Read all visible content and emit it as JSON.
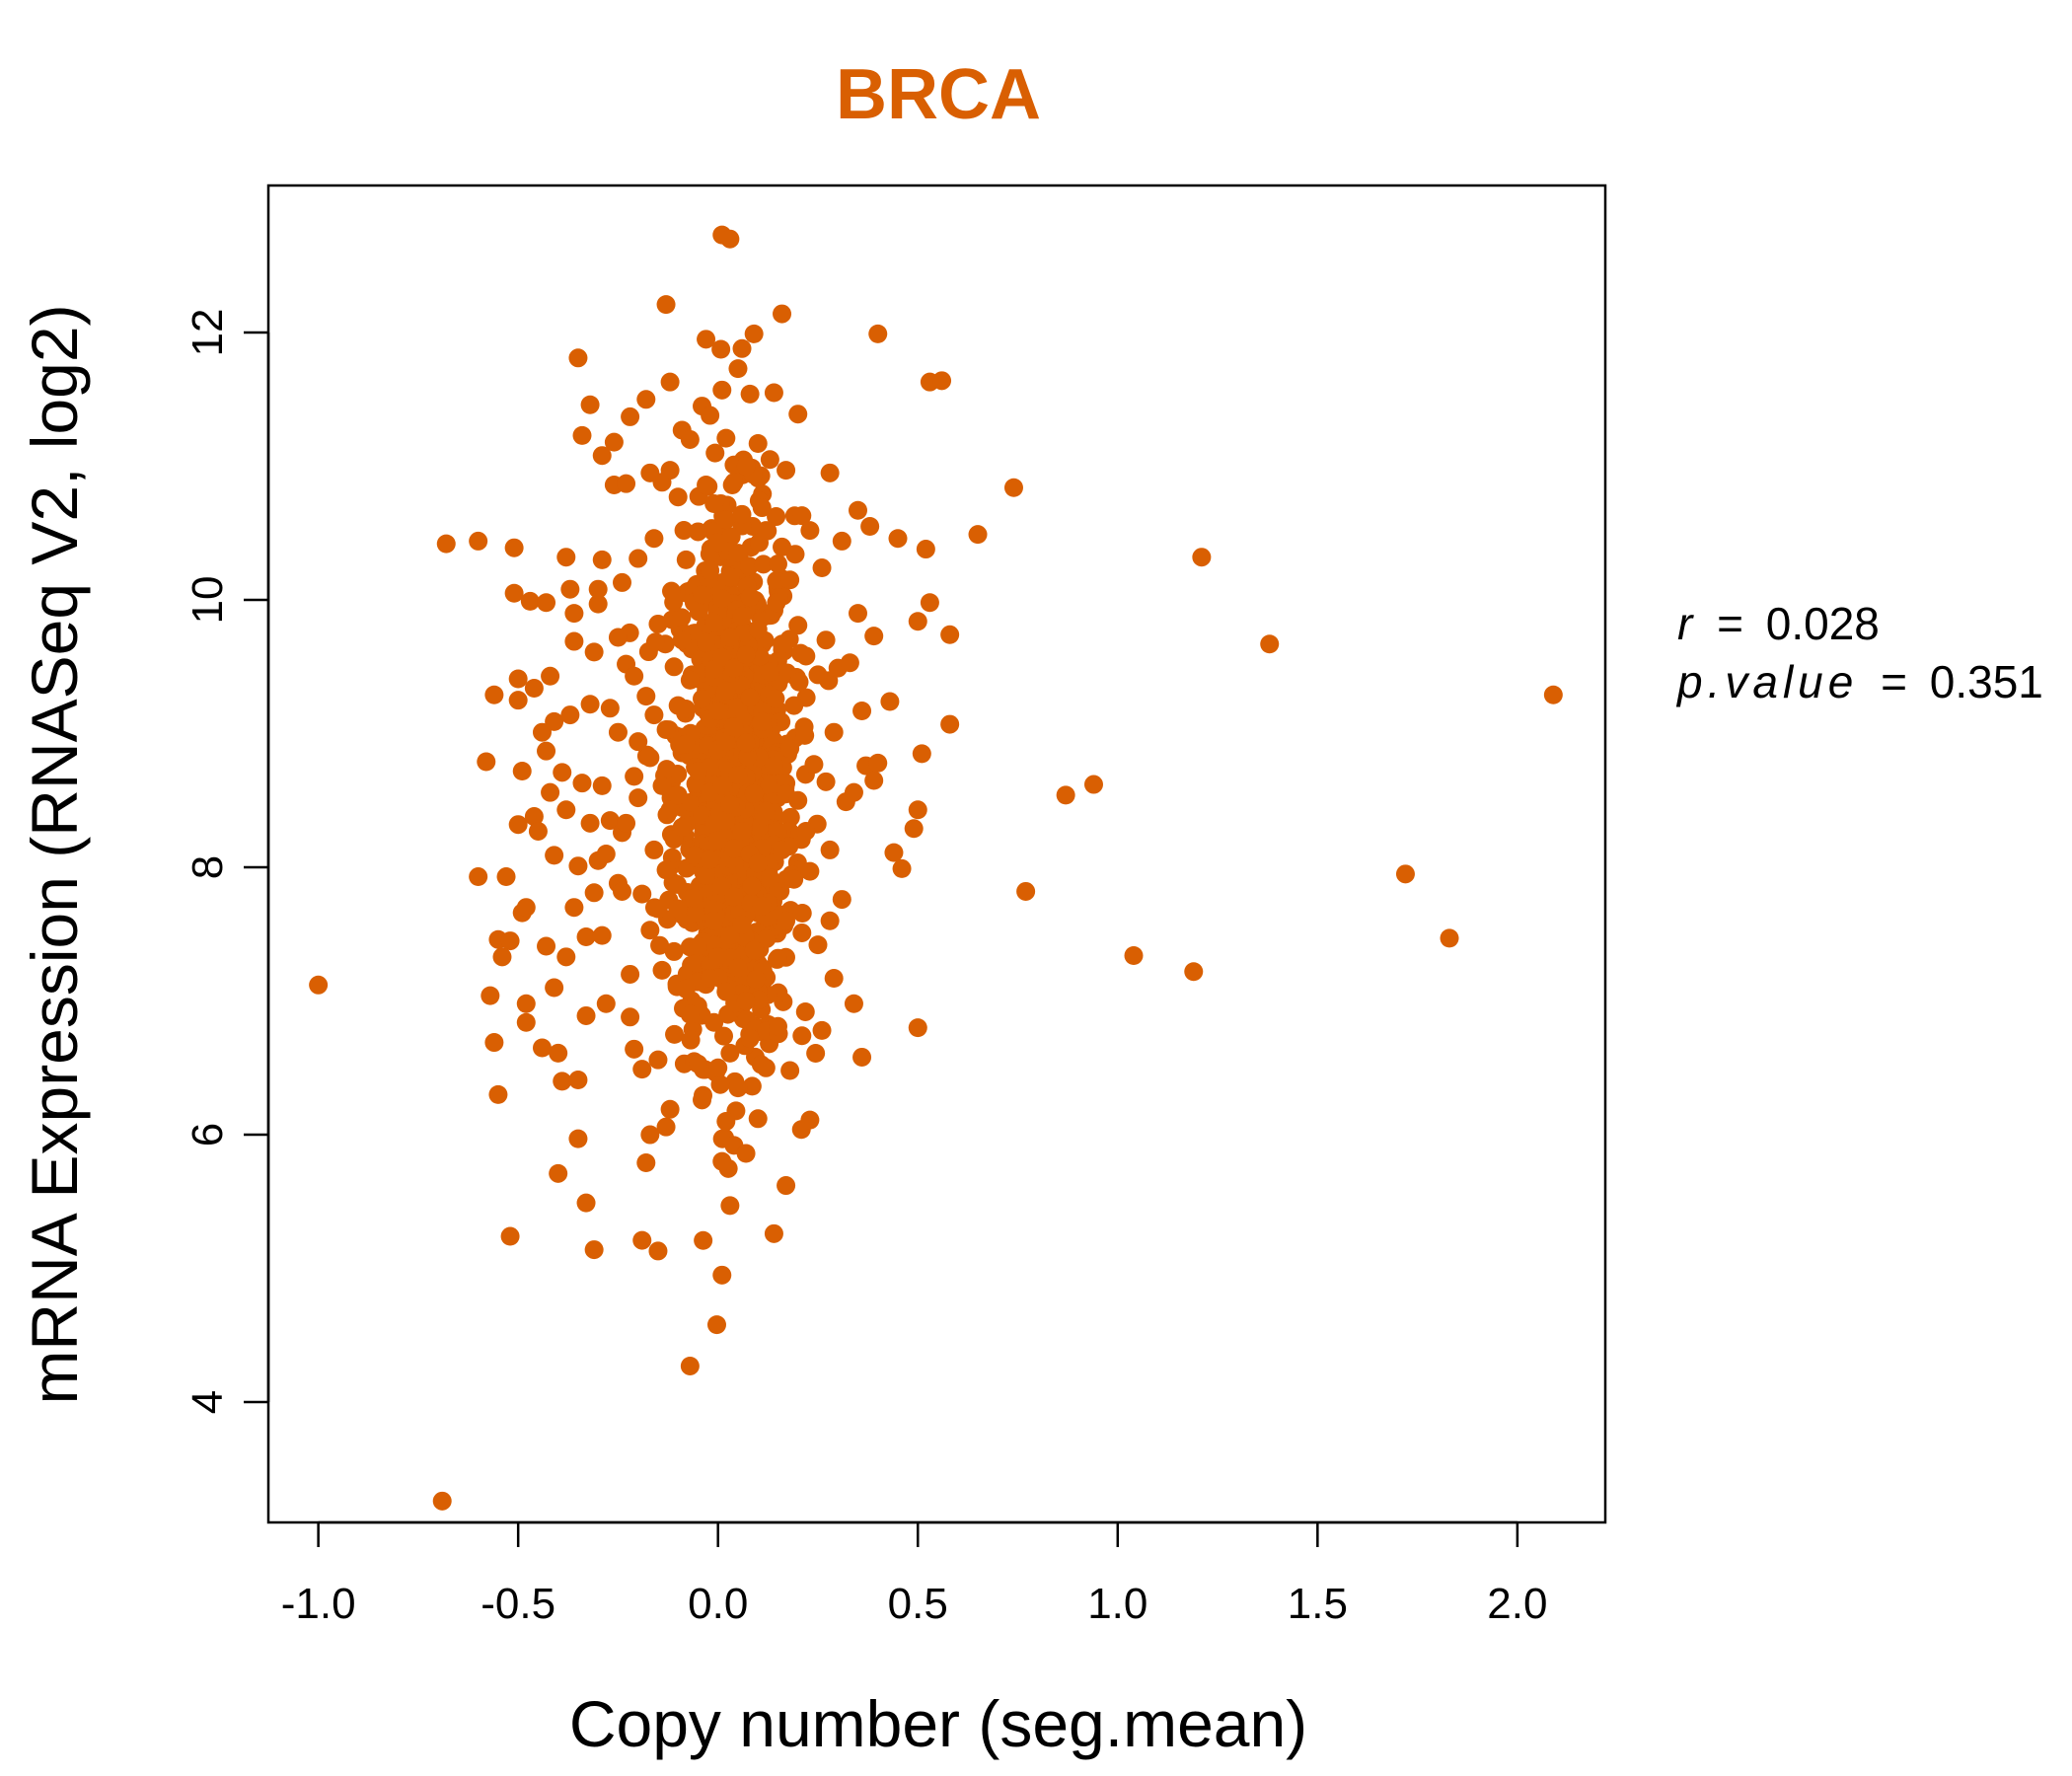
{
  "chart_data": {
    "type": "scatter",
    "title": "BRCA",
    "xlabel": "Copy number (seg.mean)",
    "ylabel": "mRNA Expression (RNASeq V2, log2)",
    "xlim": [
      -1.125,
      2.22
    ],
    "ylim": [
      3.1,
      13.1
    ],
    "xticks": [
      -1.0,
      -0.5,
      0.0,
      0.5,
      1.0,
      1.5,
      2.0
    ],
    "xtick_labels": [
      "-1.0",
      "-0.5",
      "0.0",
      "0.5",
      "1.0",
      "1.5",
      "2.0"
    ],
    "yticks": [
      4,
      6,
      8,
      10,
      12
    ],
    "ytick_labels": [
      "4",
      "6",
      "8",
      "10",
      "12"
    ],
    "grid": false,
    "color": "#D95F02",
    "annotation": {
      "r_label": "r",
      "r_value": "0.028",
      "p_label": "p.value",
      "p_value": "0.351",
      "equals": "="
    },
    "points": [
      [
        -1.0,
        7.12
      ],
      [
        -0.69,
        3.26
      ],
      [
        -0.68,
        10.42
      ],
      [
        -0.6,
        10.44
      ],
      [
        -0.6,
        7.93
      ],
      [
        -0.58,
        8.79
      ],
      [
        -0.57,
        7.04
      ],
      [
        -0.56,
        6.69
      ],
      [
        -0.56,
        9.29
      ],
      [
        -0.55,
        7.46
      ],
      [
        -0.55,
        6.3
      ],
      [
        -0.54,
        7.33
      ],
      [
        -0.53,
        7.93
      ],
      [
        -0.52,
        5.24
      ],
      [
        -0.52,
        7.45
      ],
      [
        -0.51,
        10.39
      ],
      [
        -0.51,
        10.05
      ],
      [
        -0.5,
        9.41
      ],
      [
        -0.5,
        8.32
      ],
      [
        -0.5,
        9.25
      ],
      [
        -0.49,
        7.66
      ],
      [
        -0.49,
        8.72
      ],
      [
        -0.48,
        7.7
      ],
      [
        -0.48,
        6.98
      ],
      [
        -0.48,
        6.84
      ],
      [
        -0.47,
        9.99
      ],
      [
        -0.46,
        8.38
      ],
      [
        -0.46,
        9.34
      ],
      [
        -0.45,
        8.27
      ],
      [
        -0.44,
        6.65
      ],
      [
        -0.44,
        9.01
      ],
      [
        -0.43,
        7.41
      ],
      [
        -0.43,
        8.87
      ],
      [
        -0.43,
        9.98
      ],
      [
        -0.42,
        9.43
      ],
      [
        -0.42,
        8.56
      ],
      [
        -0.41,
        8.09
      ],
      [
        -0.41,
        9.09
      ],
      [
        -0.41,
        7.1
      ],
      [
        -0.4,
        5.71
      ],
      [
        -0.4,
        6.61
      ],
      [
        -0.39,
        6.4
      ],
      [
        -0.39,
        8.71
      ],
      [
        -0.38,
        10.32
      ],
      [
        -0.38,
        7.33
      ],
      [
        -0.38,
        8.43
      ],
      [
        -0.37,
        9.14
      ],
      [
        -0.37,
        10.08
      ],
      [
        -0.36,
        9.9
      ],
      [
        -0.36,
        7.7
      ],
      [
        -0.36,
        9.69
      ],
      [
        -0.35,
        8.01
      ],
      [
        -0.35,
        5.97
      ],
      [
        -0.35,
        11.81
      ],
      [
        -0.35,
        6.41
      ],
      [
        -0.34,
        8.63
      ],
      [
        -0.34,
        11.23
      ],
      [
        -0.33,
        7.48
      ],
      [
        -0.33,
        5.49
      ],
      [
        -0.33,
        6.89
      ],
      [
        -0.32,
        11.46
      ],
      [
        -0.32,
        8.33
      ],
      [
        -0.32,
        9.22
      ],
      [
        -0.31,
        5.14
      ],
      [
        -0.31,
        7.81
      ],
      [
        -0.31,
        9.61
      ],
      [
        -0.3,
        8.05
      ],
      [
        -0.3,
        9.97
      ],
      [
        -0.3,
        10.08
      ],
      [
        -0.29,
        11.08
      ],
      [
        -0.29,
        8.61
      ],
      [
        -0.29,
        7.49
      ],
      [
        -0.29,
        10.3
      ],
      [
        -0.28,
        8.1
      ],
      [
        -0.28,
        6.98
      ],
      [
        -0.27,
        9.19
      ],
      [
        -0.27,
        8.35
      ],
      [
        -0.26,
        10.86
      ],
      [
        -0.26,
        11.18
      ],
      [
        -0.25,
        9.01
      ],
      [
        -0.25,
        9.72
      ],
      [
        -0.25,
        7.88
      ],
      [
        -0.24,
        8.26
      ],
      [
        -0.24,
        10.13
      ],
      [
        -0.24,
        7.82
      ],
      [
        -0.23,
        10.87
      ],
      [
        -0.23,
        9.52
      ],
      [
        -0.23,
        8.33
      ],
      [
        -0.22,
        7.2
      ],
      [
        -0.22,
        6.88
      ],
      [
        -0.22,
        11.37
      ],
      [
        -0.21,
        8.68
      ],
      [
        -0.21,
        6.64
      ],
      [
        -0.21,
        9.43
      ],
      [
        -0.2,
        8.52
      ],
      [
        -0.2,
        10.31
      ],
      [
        -0.2,
        8.94
      ],
      [
        -0.19,
        7.8
      ],
      [
        -0.19,
        6.49
      ],
      [
        -0.19,
        5.21
      ],
      [
        -0.18,
        11.5
      ],
      [
        -0.18,
        5.79
      ],
      [
        -0.18,
        9.28
      ],
      [
        -0.17,
        7.53
      ],
      [
        -0.17,
        10.95
      ],
      [
        -0.17,
        6.0
      ],
      [
        -0.17,
        8.82
      ],
      [
        -0.16,
        8.13
      ],
      [
        -0.16,
        9.14
      ],
      [
        -0.16,
        10.46
      ],
      [
        -0.15,
        7.69
      ],
      [
        -0.15,
        6.56
      ],
      [
        -0.15,
        5.13
      ],
      [
        -0.15,
        9.82
      ],
      [
        -0.14,
        8.61
      ],
      [
        -0.14,
        10.88
      ],
      [
        -0.14,
        7.23
      ],
      [
        -0.13,
        12.21
      ],
      [
        -0.13,
        9.03
      ],
      [
        -0.13,
        7.98
      ],
      [
        -0.12,
        6.19
      ],
      [
        -0.12,
        8.43
      ],
      [
        -0.12,
        11.63
      ],
      [
        -0.12,
        10.97
      ],
      [
        -0.11,
        9.5
      ],
      [
        -0.11,
        7.37
      ],
      [
        -0.11,
        8.21
      ],
      [
        -0.1,
        10.77
      ],
      [
        -0.1,
        9.21
      ],
      [
        -0.1,
        8.54
      ],
      [
        -0.1,
        7.69
      ],
      [
        -0.09,
        11.27
      ],
      [
        -0.09,
        9.7
      ],
      [
        -0.09,
        8.3
      ],
      [
        -0.08,
        8.92
      ],
      [
        -0.08,
        10.3
      ],
      [
        -0.08,
        7.09
      ],
      [
        -0.07,
        4.27
      ],
      [
        -0.07,
        11.2
      ],
      [
        -0.07,
        9.4
      ],
      [
        -0.07,
        6.9
      ],
      [
        -0.06,
        8.09
      ],
      [
        -0.06,
        9.98
      ],
      [
        -0.06,
        7.77
      ],
      [
        -0.05,
        10.51
      ],
      [
        -0.05,
        8.72
      ],
      [
        -0.05,
        7.41
      ],
      [
        -0.05,
        6.53
      ],
      [
        -0.04,
        9.26
      ],
      [
        -0.04,
        11.45
      ],
      [
        -0.04,
        10.04
      ],
      [
        -0.04,
        8.39
      ],
      [
        -0.04,
        6.26
      ],
      [
        -0.03,
        7.94
      ],
      [
        -0.03,
        9.68
      ],
      [
        -0.03,
        11.95
      ],
      [
        -0.03,
        10.86
      ],
      [
        -0.02,
        8.56
      ],
      [
        -0.02,
        7.17
      ],
      [
        -0.02,
        9.11
      ],
      [
        -0.02,
        10.22
      ],
      [
        -0.02,
        11.38
      ],
      [
        -0.02,
        8.06
      ],
      [
        -0.01,
        9.48
      ],
      [
        -0.01,
        7.6
      ],
      [
        -0.01,
        6.84
      ],
      [
        -0.01,
        10.72
      ],
      [
        -0.01,
        8.32
      ],
      [
        -0.01,
        9.83
      ],
      [
        0.0,
        8.88
      ],
      [
        0.0,
        7.33
      ],
      [
        0.0,
        10.43
      ],
      [
        0.0,
        6.5
      ],
      [
        0.0,
        9.17
      ],
      [
        0.0,
        8.2
      ],
      [
        0.01,
        12.73
      ],
      [
        0.01,
        4.95
      ],
      [
        0.01,
        11.57
      ],
      [
        0.01,
        9.57
      ],
      [
        0.01,
        7.86
      ],
      [
        0.01,
        10.01
      ],
      [
        0.01,
        8.61
      ],
      [
        0.01,
        5.8
      ],
      [
        0.02,
        11.21
      ],
      [
        0.02,
        8.35
      ],
      [
        0.02,
        9.32
      ],
      [
        0.02,
        7.07
      ],
      [
        0.02,
        10.6
      ],
      [
        0.02,
        6.1
      ],
      [
        0.02,
        8.94
      ],
      [
        0.03,
        12.7
      ],
      [
        0.03,
        9.72
      ],
      [
        0.03,
        7.49
      ],
      [
        0.03,
        10.17
      ],
      [
        0.03,
        8.47
      ],
      [
        0.03,
        6.61
      ],
      [
        0.03,
        5.47
      ],
      [
        0.04,
        11.01
      ],
      [
        0.04,
        8.14
      ],
      [
        0.04,
        9.05
      ],
      [
        0.04,
        7.78
      ],
      [
        0.04,
        10.88
      ],
      [
        0.04,
        5.92
      ],
      [
        0.04,
        9.49
      ],
      [
        0.05,
        11.73
      ],
      [
        0.05,
        8.69
      ],
      [
        0.05,
        7.25
      ],
      [
        0.05,
        10.35
      ],
      [
        0.05,
        6.35
      ],
      [
        0.05,
        9.2
      ],
      [
        0.06,
        11.88
      ],
      [
        0.06,
        8.27
      ],
      [
        0.06,
        9.88
      ],
      [
        0.06,
        7.57
      ],
      [
        0.06,
        10.64
      ],
      [
        0.07,
        5.86
      ],
      [
        0.07,
        8.93
      ],
      [
        0.07,
        7.0
      ],
      [
        0.07,
        9.59
      ],
      [
        0.07,
        11.0
      ],
      [
        0.08,
        11.54
      ],
      [
        0.08,
        8.1
      ],
      [
        0.08,
        9.27
      ],
      [
        0.08,
        6.72
      ],
      [
        0.08,
        10.02
      ],
      [
        0.09,
        11.99
      ],
      [
        0.09,
        8.55
      ],
      [
        0.09,
        7.38
      ],
      [
        0.1,
        6.12
      ],
      [
        0.1,
        9.78
      ],
      [
        0.1,
        11.17
      ],
      [
        0.1,
        8.03
      ],
      [
        0.11,
        10.69
      ],
      [
        0.11,
        7.71
      ],
      [
        0.11,
        9.09
      ],
      [
        0.12,
        8.42
      ],
      [
        0.12,
        6.5
      ],
      [
        0.12,
        10.52
      ],
      [
        0.13,
        11.05
      ],
      [
        0.13,
        7.92
      ],
      [
        0.13,
        9.46
      ],
      [
        0.14,
        5.26
      ],
      [
        0.14,
        8.76
      ],
      [
        0.14,
        11.55
      ],
      [
        0.15,
        7.32
      ],
      [
        0.15,
        10.27
      ],
      [
        0.15,
        6.81
      ],
      [
        0.16,
        12.14
      ],
      [
        0.16,
        8.13
      ],
      [
        0.16,
        9.67
      ],
      [
        0.17,
        5.62
      ],
      [
        0.17,
        10.97
      ],
      [
        0.17,
        7.6
      ],
      [
        0.18,
        8.89
      ],
      [
        0.18,
        6.48
      ],
      [
        0.18,
        10.15
      ],
      [
        0.19,
        9.21
      ],
      [
        0.19,
        7.91
      ],
      [
        0.2,
        11.39
      ],
      [
        0.2,
        8.5
      ],
      [
        0.2,
        9.81
      ],
      [
        0.21,
        10.63
      ],
      [
        0.21,
        7.51
      ],
      [
        0.21,
        6.74
      ],
      [
        0.22,
        8.27
      ],
      [
        0.22,
        9.58
      ],
      [
        0.23,
        6.11
      ],
      [
        0.23,
        10.52
      ],
      [
        0.23,
        7.97
      ],
      [
        0.24,
        8.77
      ],
      [
        0.25,
        9.44
      ],
      [
        0.25,
        7.42
      ],
      [
        0.26,
        10.24
      ],
      [
        0.26,
        6.78
      ],
      [
        0.27,
        8.64
      ],
      [
        0.27,
        9.7
      ],
      [
        0.28,
        10.95
      ],
      [
        0.28,
        7.6
      ],
      [
        0.28,
        8.13
      ],
      [
        0.29,
        9.01
      ],
      [
        0.29,
        7.17
      ],
      [
        0.3,
        9.49
      ],
      [
        0.31,
        10.44
      ],
      [
        0.31,
        7.76
      ],
      [
        0.32,
        8.49
      ],
      [
        0.33,
        9.53
      ],
      [
        0.34,
        8.56
      ],
      [
        0.34,
        6.98
      ],
      [
        0.35,
        9.9
      ],
      [
        0.35,
        10.67
      ],
      [
        0.36,
        9.17
      ],
      [
        0.36,
        6.58
      ],
      [
        0.37,
        8.76
      ],
      [
        0.38,
        10.55
      ],
      [
        0.39,
        9.73
      ],
      [
        0.39,
        8.65
      ],
      [
        0.4,
        11.99
      ],
      [
        0.4,
        8.78
      ],
      [
        0.43,
        9.24
      ],
      [
        0.44,
        8.11
      ],
      [
        0.45,
        10.46
      ],
      [
        0.46,
        7.99
      ],
      [
        0.49,
        8.29
      ],
      [
        0.5,
        6.8
      ],
      [
        0.5,
        8.43
      ],
      [
        0.5,
        9.84
      ],
      [
        0.51,
        8.85
      ],
      [
        0.52,
        10.38
      ],
      [
        0.53,
        9.98
      ],
      [
        0.53,
        11.63
      ],
      [
        0.56,
        11.64
      ],
      [
        0.58,
        9.74
      ],
      [
        0.58,
        9.07
      ],
      [
        0.65,
        10.49
      ],
      [
        0.74,
        10.84
      ],
      [
        0.77,
        7.82
      ],
      [
        0.87,
        8.54
      ],
      [
        0.94,
        8.62
      ],
      [
        1.04,
        7.34
      ],
      [
        1.19,
        7.22
      ],
      [
        1.21,
        10.32
      ],
      [
        1.38,
        9.67
      ],
      [
        1.72,
        7.95
      ],
      [
        1.83,
        7.47
      ],
      [
        2.09,
        9.29
      ]
    ],
    "dense_core": {
      "center_x": 0.04,
      "spread_x": 0.075,
      "center_y": 8.6,
      "spread_y": 1.0,
      "count": 900
    }
  }
}
